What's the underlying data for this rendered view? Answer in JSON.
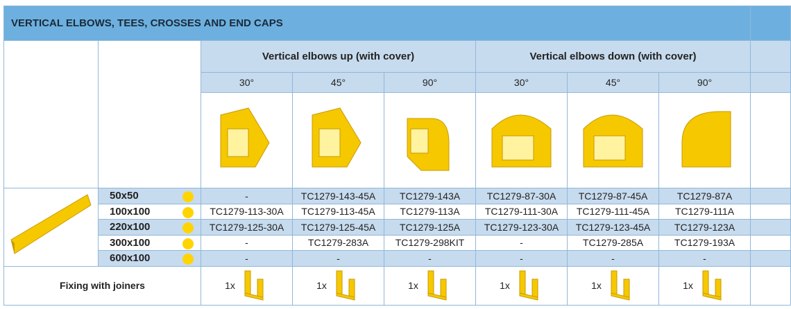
{
  "title": "VERTICAL ELBOWS, TEES, CROSSES AND END CAPS",
  "groups": [
    "Vertical elbows up (with cover)",
    "Vertical elbows down (with cover)"
  ],
  "angles": [
    "30°",
    "45°",
    "90°",
    "30°",
    "45°",
    "90°"
  ],
  "rows": [
    {
      "size": "50x50",
      "codes": [
        "-",
        "TC1279-143-45A",
        "TC1279-143A",
        "TC1279-87-30A",
        "TC1279-87-45A",
        "TC1279-87A"
      ]
    },
    {
      "size": "100x100",
      "codes": [
        "TC1279-113-30A",
        "TC1279-113-45A",
        "TC1279-113A",
        "TC1279-111-30A",
        "TC1279-111-45A",
        "TC1279-111A"
      ]
    },
    {
      "size": "220x100",
      "codes": [
        "TC1279-125-30A",
        "TC1279-125-45A",
        "TC1279-125A",
        "TC1279-123-30A",
        "TC1279-123-45A",
        "TC1279-123A"
      ]
    },
    {
      "size": "300x100",
      "codes": [
        "-",
        "TC1279-283A",
        "TC1279-298KIT",
        "-",
        "TC1279-285A",
        "TC1279-193A"
      ]
    },
    {
      "size": "600x100",
      "codes": [
        "-",
        "-",
        "-",
        "-",
        "-",
        "-"
      ]
    }
  ],
  "fixing": {
    "label": "Fixing with joiners",
    "qty": [
      "1x",
      "1x",
      "1x",
      "1x",
      "1x",
      "1x"
    ]
  },
  "colors": {
    "header": "#6db0df",
    "shade": "#c7dbee",
    "product": "#ffd400"
  }
}
